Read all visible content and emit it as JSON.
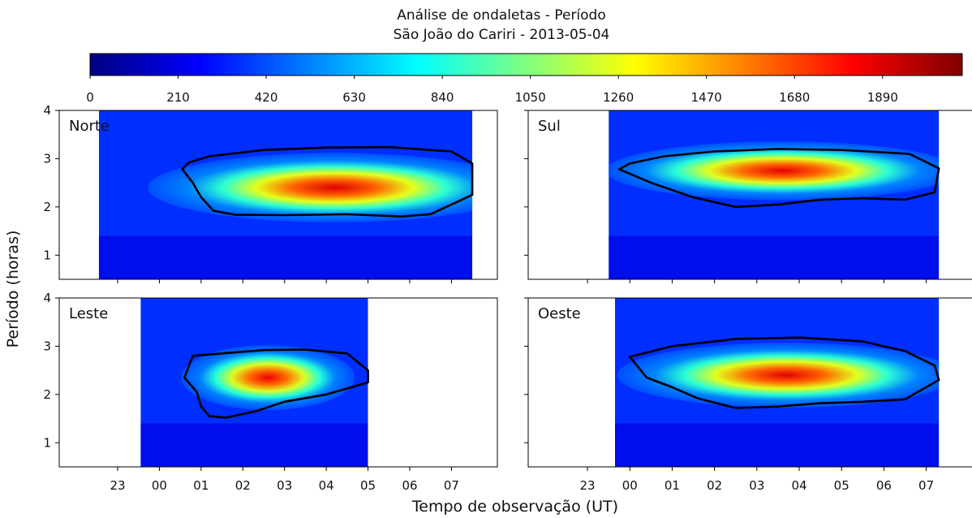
{
  "chart_data": {
    "type": "heatmap",
    "title": "Análise de ondaletas - Período",
    "subtitle": "São João do Cariri - 2013-05-04",
    "xlabel": "Tempo de observação (UT)",
    "ylabel": "Período (horas)",
    "colorbar": {
      "colormap": "jet",
      "range": [
        0,
        2080
      ],
      "ticks": [
        "0",
        "210",
        "420",
        "630",
        "840",
        "1050",
        "1260",
        "1470",
        "1680",
        "1890"
      ]
    },
    "x_ticks": [
      "23",
      "00",
      "01",
      "02",
      "03",
      "04",
      "05",
      "06",
      "07"
    ],
    "x_tick_values": [
      -1,
      0,
      1,
      2,
      3,
      4,
      5,
      6,
      7
    ],
    "xlim": [
      -2.4,
      8.1
    ],
    "y_ticks": [
      "1",
      "2",
      "3",
      "4"
    ],
    "ylim": [
      0.5,
      4
    ],
    "grid": false,
    "panels": [
      {
        "label": "Norte",
        "data_extent_x": [
          -1.45,
          7.5
        ],
        "peak": {
          "x": 4.2,
          "y": 2.4,
          "power": 1890
        },
        "spread": {
          "x": 2.8,
          "y": 0.45
        },
        "contour": [
          [
            0.55,
            2.78
          ],
          [
            0.8,
            2.5
          ],
          [
            1.0,
            2.2
          ],
          [
            1.3,
            1.92
          ],
          [
            1.8,
            1.84
          ],
          [
            3.0,
            1.83
          ],
          [
            4.5,
            1.85
          ],
          [
            5.8,
            1.8
          ],
          [
            6.5,
            1.85
          ],
          [
            7.5,
            2.25
          ],
          [
            7.5,
            2.9
          ],
          [
            7.0,
            3.15
          ],
          [
            5.5,
            3.24
          ],
          [
            4.0,
            3.23
          ],
          [
            2.5,
            3.18
          ],
          [
            1.2,
            3.05
          ],
          [
            0.7,
            2.92
          ],
          [
            0.55,
            2.78
          ]
        ]
      },
      {
        "label": "Sul",
        "data_extent_x": [
          -0.5,
          7.3
        ],
        "peak": {
          "x": 3.6,
          "y": 2.75,
          "power": 1880
        },
        "spread": {
          "x": 2.6,
          "y": 0.38
        },
        "contour": [
          [
            -0.25,
            2.78
          ],
          [
            0.5,
            2.5
          ],
          [
            1.5,
            2.2
          ],
          [
            2.5,
            2.0
          ],
          [
            3.5,
            2.05
          ],
          [
            4.5,
            2.15
          ],
          [
            5.5,
            2.18
          ],
          [
            6.5,
            2.15
          ],
          [
            7.2,
            2.3
          ],
          [
            7.3,
            2.8
          ],
          [
            6.6,
            3.1
          ],
          [
            5.0,
            3.18
          ],
          [
            3.5,
            3.2
          ],
          [
            2.0,
            3.15
          ],
          [
            0.8,
            3.05
          ],
          [
            0.0,
            2.9
          ],
          [
            -0.25,
            2.78
          ]
        ]
      },
      {
        "label": "Leste",
        "data_extent_x": [
          -0.45,
          5.0
        ],
        "peak": {
          "x": 2.6,
          "y": 2.35,
          "power": 1860
        },
        "spread": {
          "x": 1.3,
          "y": 0.42
        },
        "contour": [
          [
            0.6,
            2.35
          ],
          [
            0.9,
            2.05
          ],
          [
            1.0,
            1.75
          ],
          [
            1.2,
            1.55
          ],
          [
            1.6,
            1.52
          ],
          [
            2.3,
            1.65
          ],
          [
            3.0,
            1.85
          ],
          [
            4.0,
            2.0
          ],
          [
            5.0,
            2.25
          ],
          [
            5.0,
            2.5
          ],
          [
            4.5,
            2.85
          ],
          [
            3.5,
            2.93
          ],
          [
            2.5,
            2.92
          ],
          [
            1.5,
            2.85
          ],
          [
            0.8,
            2.8
          ],
          [
            0.6,
            2.35
          ]
        ]
      },
      {
        "label": "Oeste",
        "data_extent_x": [
          -0.35,
          7.3
        ],
        "peak": {
          "x": 3.7,
          "y": 2.4,
          "power": 1880
        },
        "spread": {
          "x": 2.5,
          "y": 0.42
        },
        "contour": [
          [
            0.0,
            2.78
          ],
          [
            0.4,
            2.35
          ],
          [
            1.0,
            2.15
          ],
          [
            1.6,
            1.92
          ],
          [
            2.5,
            1.72
          ],
          [
            3.5,
            1.75
          ],
          [
            4.5,
            1.82
          ],
          [
            5.5,
            1.85
          ],
          [
            6.5,
            1.9
          ],
          [
            7.3,
            2.3
          ],
          [
            7.2,
            2.6
          ],
          [
            6.5,
            2.9
          ],
          [
            5.5,
            3.1
          ],
          [
            4.0,
            3.18
          ],
          [
            2.5,
            3.15
          ],
          [
            1.0,
            3.0
          ],
          [
            0.0,
            2.78
          ]
        ]
      }
    ]
  }
}
